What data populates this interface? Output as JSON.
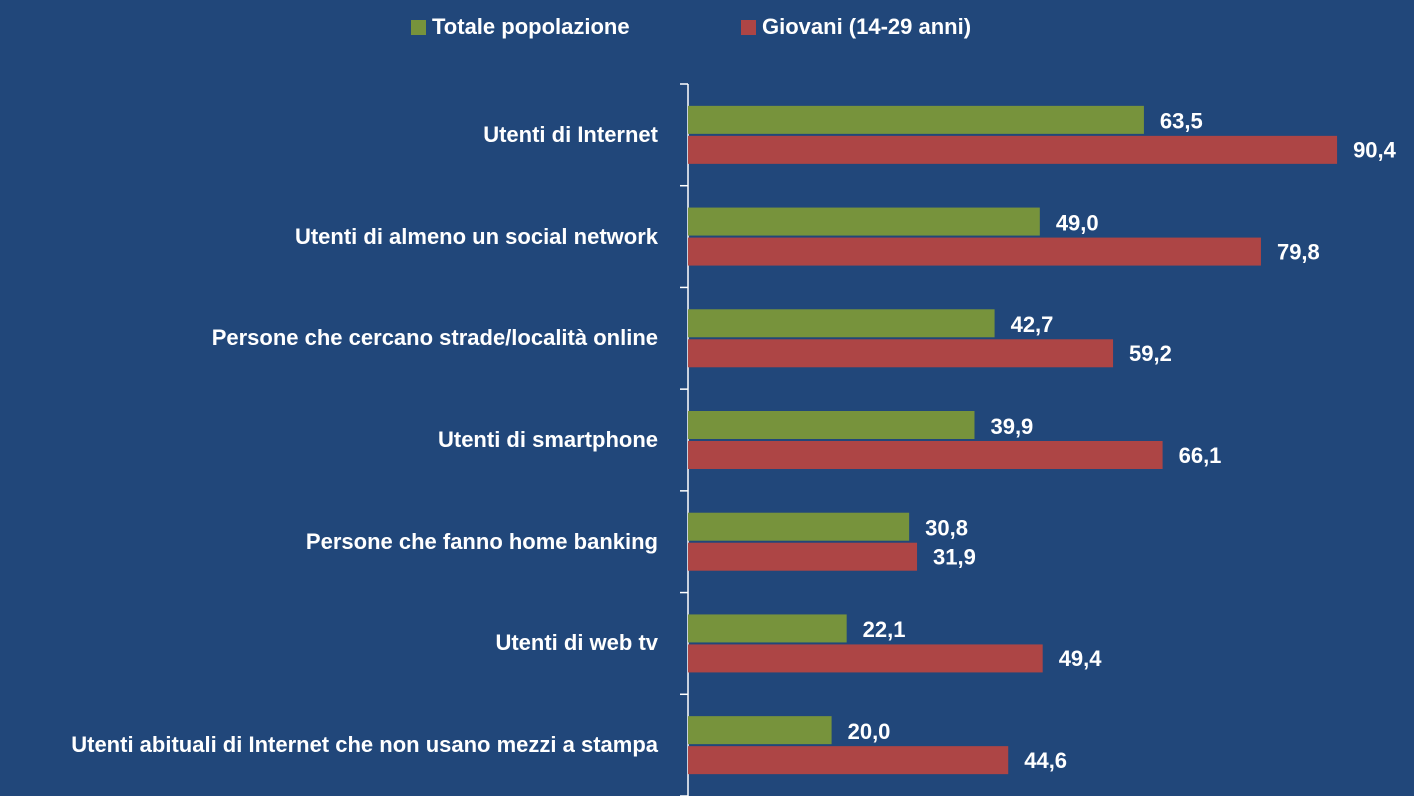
{
  "chart_data": {
    "type": "hbar",
    "categories": [
      "Utenti di Internet",
      "Utenti di almeno un social network",
      "Persone che cercano strade/località online",
      "Utenti di smartphone",
      "Persone che fanno home banking",
      "Utenti di web tv",
      "Utenti abituali di Internet che non usano mezzi a stampa"
    ],
    "series": [
      {
        "name": "Totale popolazione",
        "color": "#77933c",
        "values": [
          63.5,
          49.0,
          42.7,
          39.9,
          30.8,
          22.1,
          20.0
        ],
        "value_labels": [
          "63,5",
          "49,0",
          "42,7",
          "39,9",
          "30,8",
          "22,1",
          "20,0"
        ]
      },
      {
        "name": "Giovani (14-29 anni)",
        "color": "#ad4545",
        "values": [
          90.4,
          79.8,
          59.2,
          66.1,
          31.9,
          49.4,
          44.6
        ],
        "value_labels": [
          "90,4",
          "79,8",
          "59,2",
          "66,1",
          "31,9",
          "49,4",
          "44,6"
        ]
      }
    ],
    "xlim": [
      0,
      100
    ],
    "legend": "top"
  }
}
